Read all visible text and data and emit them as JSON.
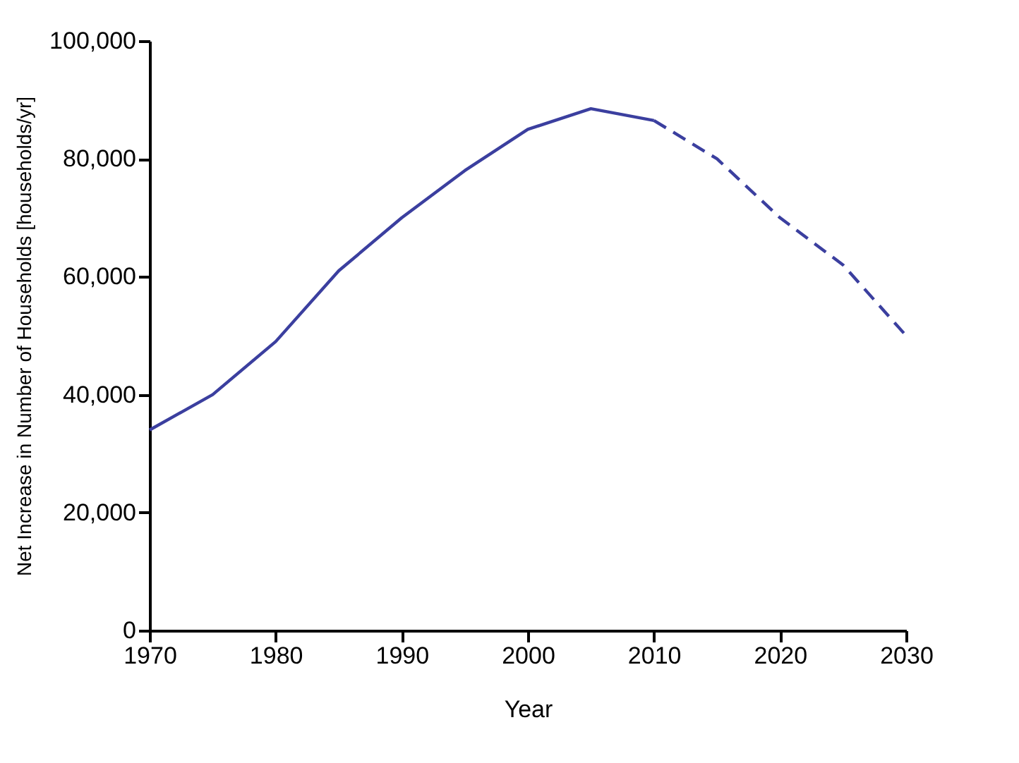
{
  "chart_data": {
    "type": "line",
    "xlabel": "Year",
    "ylabel": "Net Increase in Number of Households [households/yr]",
    "xlim": [
      1970,
      2030
    ],
    "xticks": [
      1970,
      1980,
      1990,
      2000,
      2010,
      2020,
      2030
    ],
    "ylim": [
      0,
      100000
    ],
    "yticks": [
      0,
      {
        "value": 20000,
        "label": "20,000"
      },
      {
        "value": 40000,
        "label": "40,000"
      },
      {
        "value": 60000,
        "label": "60,000"
      },
      {
        "value": 80000,
        "label": "80,000"
      },
      {
        "value": 100000,
        "label": "100,000"
      }
    ],
    "grid": false,
    "marker": "none",
    "series": [
      {
        "color": "#3b3f9f",
        "line_style": "solid",
        "x": [
          1970,
          1975,
          1980,
          1985,
          1990,
          1995,
          2000,
          2005,
          2010
        ],
        "values": [
          34000,
          40000,
          49000,
          61000,
          70000,
          78000,
          85000,
          88500,
          86500
        ]
      },
      {
        "color": "#3b3f9f",
        "line_style": "dashed",
        "x": [
          2010,
          2015,
          2020,
          2025,
          2030
        ],
        "values": [
          86500,
          80000,
          70000,
          62000,
          50000
        ]
      }
    ]
  }
}
